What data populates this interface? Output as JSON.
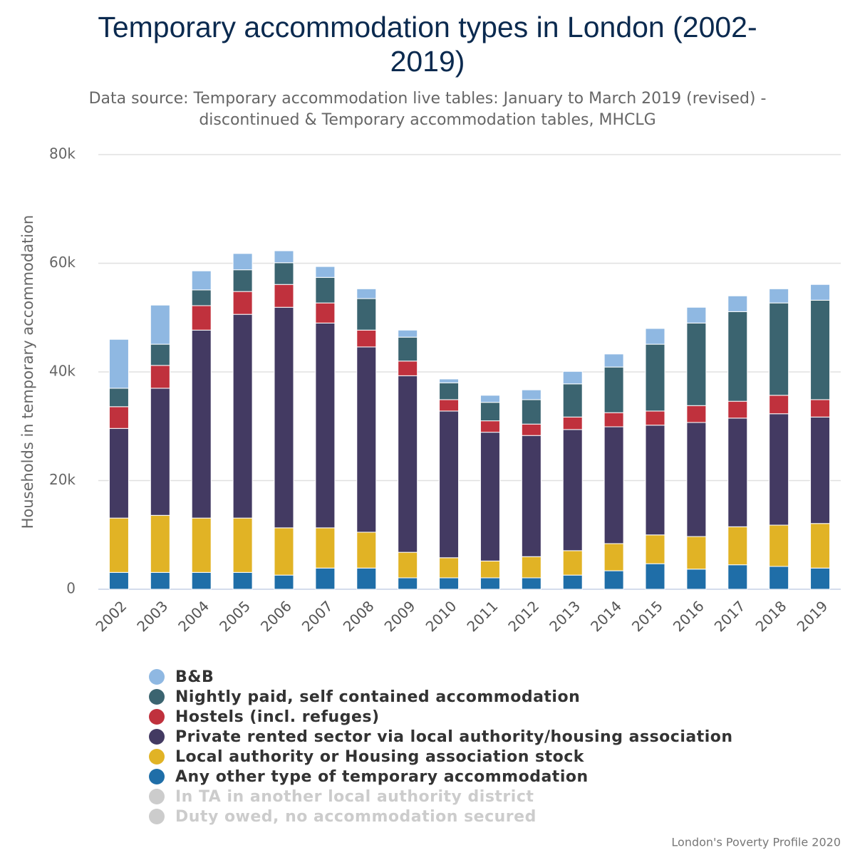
{
  "chart_data": {
    "type": "stacked_bar",
    "title": "Temporary accommodation types in London (2002-2019)",
    "subtitle": "Data source: Temporary accommodation live tables: January to March 2019 (revised) - discontinued & Temporary accommodation tables, MHCLG",
    "y_label": "Households in temporary accommodation",
    "credit": "London's Poverty Profile 2020",
    "categories": [
      "2002",
      "2003",
      "2004",
      "2005",
      "2006",
      "2007",
      "2008",
      "2009",
      "2010",
      "2011",
      "2012",
      "2013",
      "2014",
      "2015",
      "2016",
      "2017",
      "2018",
      "2019"
    ],
    "ylim": [
      0,
      80000
    ],
    "yticks": [
      0,
      {
        "value": 20000,
        "label": "20k"
      },
      {
        "value": 40000,
        "label": "40k"
      },
      {
        "value": 60000,
        "label": "60k"
      },
      {
        "value": 80000,
        "label": "80k"
      }
    ],
    "grid": true,
    "series": [
      {
        "name": "B&B",
        "color": "#8fb8e2",
        "values": [
          9000,
          7200,
          3500,
          3000,
          2200,
          2000,
          1800,
          1300,
          700,
          1300,
          1800,
          2300,
          2400,
          2900,
          2900,
          2900,
          2600,
          2900
        ]
      },
      {
        "name": "Nightly paid, self contained accommodation",
        "color": "#3b6470",
        "values": [
          3400,
          3900,
          2900,
          4000,
          4000,
          4700,
          5800,
          4400,
          3100,
          3400,
          4500,
          6100,
          8400,
          12300,
          15200,
          16500,
          17000,
          18300
        ]
      },
      {
        "name": "Hostels (incl. refuges)",
        "color": "#c0313d",
        "values": [
          4000,
          4200,
          4500,
          4200,
          4200,
          3700,
          3100,
          2700,
          2100,
          2100,
          2100,
          2300,
          2600,
          2600,
          3100,
          3100,
          3400,
          3200
        ]
      },
      {
        "name": "Private rented sector via local authority/housing association",
        "color": "#433a62",
        "values": [
          16500,
          23400,
          34600,
          37500,
          40600,
          37700,
          34100,
          32500,
          27000,
          23700,
          22300,
          22300,
          21500,
          20200,
          21000,
          20000,
          20500,
          19600
        ]
      },
      {
        "name": "Local authority or Housing association stock",
        "color": "#e1b325",
        "values": [
          10000,
          10500,
          10000,
          10000,
          8700,
          7400,
          6600,
          4700,
          3700,
          3100,
          3900,
          4500,
          5000,
          5300,
          6000,
          7000,
          7600,
          8200
        ]
      },
      {
        "name": "Any other type of temporary accommodation",
        "color": "#1f6ea8",
        "values": [
          3100,
          3100,
          3100,
          3100,
          2600,
          3900,
          3900,
          2100,
          2100,
          2100,
          2100,
          2600,
          3400,
          4700,
          3700,
          4500,
          4200,
          3900
        ]
      }
    ],
    "hidden_series": [
      {
        "name": "In TA in another local authority district",
        "color": "#cccccc"
      },
      {
        "name": "Duty owed, no accommodation secured",
        "color": "#cccccc"
      }
    ]
  }
}
